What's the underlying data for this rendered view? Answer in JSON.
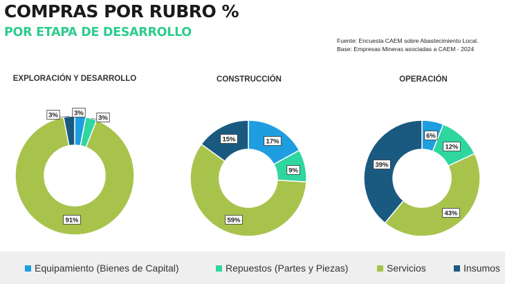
{
  "header": {
    "title": "COMPRAS POR RUBRO %",
    "subtitle": "POR ETAPA DE DESARROLLO",
    "source_line1": "Fuente: Encuesta CAEM sobre Abastecimiento Local.",
    "source_line2": "Base: Empresas Mineras asociadas a CAEM  - 2024"
  },
  "legend": [
    {
      "label": "Equipamiento (Bienes de Capital)",
      "color": "#1e9ee0"
    },
    {
      "label": "Repuestos (Partes y Piezas)",
      "color": "#2fd6a0"
    },
    {
      "label": "Servicios",
      "color": "#a8c34c"
    },
    {
      "label": "Insumos",
      "color": "#1a5a80"
    }
  ],
  "chart_data": [
    {
      "type": "pie",
      "title": "EXPLORACIÓN Y DESARROLLO",
      "categories": [
        "Equipamiento (Bienes de Capital)",
        "Repuestos (Partes y Piezas)",
        "Servicios",
        "Insumos"
      ],
      "values": [
        3,
        3,
        91,
        3
      ],
      "labels": [
        "3%",
        "3%",
        "91%",
        "3%"
      ]
    },
    {
      "type": "pie",
      "title": "CONSTRUCCIÓN",
      "categories": [
        "Equipamiento (Bienes de Capital)",
        "Repuestos (Partes y Piezas)",
        "Servicios",
        "Insumos"
      ],
      "values": [
        17,
        9,
        59,
        15
      ],
      "labels": [
        "17%",
        "9%",
        "59%",
        "15%"
      ]
    },
    {
      "type": "pie",
      "title": "OPERACIÓN",
      "categories": [
        "Equipamiento (Bienes de Capital)",
        "Repuestos (Partes y Piezas)",
        "Servicios",
        "Insumos"
      ],
      "values": [
        6,
        12,
        43,
        39
      ],
      "labels": [
        "6%",
        "12%",
        "43%",
        "39%"
      ]
    }
  ]
}
